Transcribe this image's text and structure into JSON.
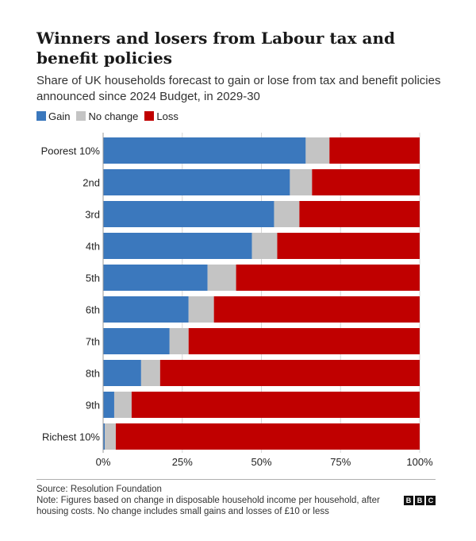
{
  "title": "Winners and losers from Labour tax and benefit policies",
  "subtitle": "Share of UK households forecast to gain or lose from tax and benefit policies announced since 2024 Budget, in 2029-30",
  "source": "Source: Resolution Foundation",
  "note": "Note: Figures based on change in disposable household income per household, after housing costs. No change includes small gains and losses of £10 or less",
  "logo": [
    "B",
    "B",
    "C"
  ],
  "colors": {
    "gain": "#3b78bd",
    "no_change": "#c4c4c4",
    "loss": "#c00000",
    "gridline": "#d6d6d6",
    "text": "#222222"
  },
  "chart_data": {
    "type": "bar",
    "orientation": "horizontal",
    "stacked": true,
    "title": "Winners and losers from Labour tax and benefit policies",
    "subtitle": "Share of UK households forecast to gain or lose from tax and benefit policies announced since 2024 Budget, in 2029-30",
    "categories": [
      "Poorest 10%",
      "2nd",
      "3rd",
      "4th",
      "5th",
      "6th",
      "7th",
      "8th",
      "9th",
      "Richest 10%"
    ],
    "series": [
      {
        "name": "Gain",
        "color": "#3b78bd",
        "values": [
          64,
          59,
          54,
          47,
          33,
          27,
          21,
          12,
          3.5,
          0.5
        ]
      },
      {
        "name": "No change",
        "color": "#c4c4c4",
        "values": [
          7.5,
          7,
          8,
          8,
          9,
          8,
          6,
          6,
          5.5,
          3.5
        ]
      },
      {
        "name": "Loss",
        "color": "#c00000",
        "values": [
          28.5,
          34,
          38,
          45,
          58,
          65,
          73,
          82,
          91,
          96
        ]
      }
    ],
    "xlim": [
      0,
      100
    ],
    "xticks": [
      0,
      25,
      50,
      75,
      100
    ],
    "xtick_labels": [
      "0%",
      "25%",
      "50%",
      "75%",
      "100%"
    ],
    "xlabel": "",
    "ylabel": "",
    "grid": true,
    "legend_position": "top-left"
  }
}
